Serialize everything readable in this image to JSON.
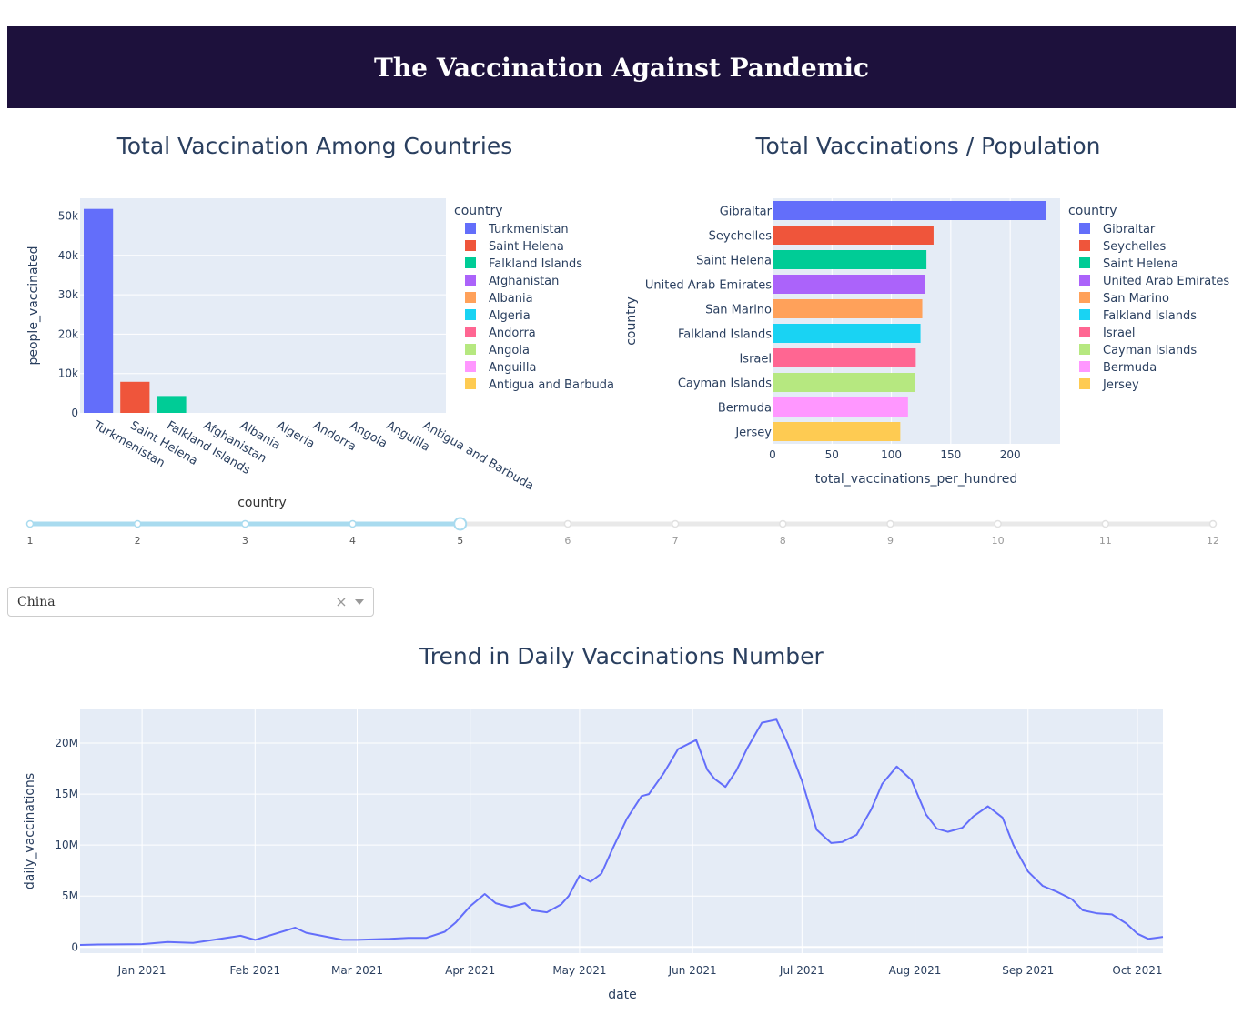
{
  "header": {
    "title": "The Vaccination Against Pandemic"
  },
  "colors": {
    "header_bg": "#1d113c",
    "plot_bg": "#e5ecf6",
    "palette": [
      "#636efa",
      "#ef553b",
      "#00cc96",
      "#ab63fa",
      "#ffa15a",
      "#19d3f3",
      "#ff6692",
      "#b6e880",
      "#ff97ff",
      "#fecb52"
    ],
    "slider_active": "#a9dbef"
  },
  "dropdown": {
    "value": "China",
    "clear": "×"
  },
  "slider": {
    "label": "country",
    "ticks": [
      "1",
      "2",
      "3",
      "4",
      "5",
      "6",
      "7",
      "8",
      "9",
      "10",
      "11",
      "12"
    ],
    "value": 5
  },
  "chart_data": [
    {
      "type": "bar",
      "title": "Total Vaccination Among Countries",
      "xlabel": "",
      "ylabel": "people_vaccinated",
      "legend_title": "country",
      "categories": [
        "Turkmenistan",
        "Saint Helena",
        "Falkland Islands",
        "Afghanistan",
        "Albania",
        "Algeria",
        "Andorra",
        "Angola",
        "Anguilla",
        "Antigua and Barbuda"
      ],
      "values": [
        51800,
        7900,
        4300,
        0,
        0,
        0,
        0,
        0,
        0,
        0
      ],
      "yticks": [
        0,
        10000,
        20000,
        30000,
        40000,
        50000
      ],
      "ytick_labels": [
        "0",
        "10k",
        "20k",
        "30k",
        "40k",
        "50k"
      ],
      "ylim": [
        0,
        54500
      ]
    },
    {
      "type": "bar",
      "orientation": "horizontal",
      "title": "Total Vaccinations / Population",
      "xlabel": "total_vaccinations_per_hundred",
      "ylabel": "country",
      "legend_title": "country",
      "categories": [
        "Gibraltar",
        "Seychelles",
        "Saint Helena",
        "United Arab Emirates",
        "San Marino",
        "Falkland Islands",
        "Israel",
        "Cayman Islands",
        "Bermuda",
        "Jersey"
      ],
      "values": [
        230.5,
        135.5,
        129.5,
        128.5,
        126,
        124.5,
        120.5,
        120,
        114,
        107.5
      ],
      "xticks": [
        0,
        50,
        100,
        150,
        200
      ],
      "xlim": [
        0,
        242
      ]
    },
    {
      "type": "line",
      "title": "Trend in Daily Vaccinations Number",
      "xlabel": "date",
      "ylabel": "daily_vaccinations",
      "xtick_labels": [
        "Jan 2021",
        "Feb 2021",
        "Mar 2021",
        "Apr 2021",
        "May 2021",
        "Jun 2021",
        "Jul 2021",
        "Aug 2021",
        "Sep 2021",
        "Oct 2021"
      ],
      "yticks": [
        0,
        5000000,
        10000000,
        15000000,
        20000000
      ],
      "ytick_labels": [
        "0",
        "5M",
        "10M",
        "15M",
        "20M"
      ],
      "ylim": [
        -600000,
        23300000
      ],
      "xlim": [
        "2020-12-15",
        "2021-10-08"
      ],
      "series": [
        {
          "x": [
            "2020-12-15",
            "2020-12-20",
            "2021-01-01",
            "2021-01-08",
            "2021-01-15",
            "2021-01-28",
            "2021-02-01",
            "2021-02-12",
            "2021-02-15",
            "2021-02-25",
            "2021-03-01",
            "2021-03-10",
            "2021-03-15",
            "2021-03-20",
            "2021-03-25",
            "2021-03-28",
            "2021-04-01",
            "2021-04-05",
            "2021-04-08",
            "2021-04-12",
            "2021-04-16",
            "2021-04-18",
            "2021-04-22",
            "2021-04-26",
            "2021-04-28",
            "2021-05-01",
            "2021-05-04",
            "2021-05-07",
            "2021-05-10",
            "2021-05-14",
            "2021-05-18",
            "2021-05-20",
            "2021-05-24",
            "2021-05-28",
            "2021-06-02",
            "2021-06-05",
            "2021-06-07",
            "2021-06-10",
            "2021-06-13",
            "2021-06-16",
            "2021-06-20",
            "2021-06-24",
            "2021-06-27",
            "2021-07-01",
            "2021-07-05",
            "2021-07-09",
            "2021-07-12",
            "2021-07-16",
            "2021-07-20",
            "2021-07-23",
            "2021-07-27",
            "2021-07-31",
            "2021-08-04",
            "2021-08-07",
            "2021-08-10",
            "2021-08-14",
            "2021-08-17",
            "2021-08-21",
            "2021-08-25",
            "2021-08-28",
            "2021-09-01",
            "2021-09-05",
            "2021-09-09",
            "2021-09-13",
            "2021-09-16",
            "2021-09-20",
            "2021-09-24",
            "2021-09-28",
            "2021-10-01",
            "2021-10-04",
            "2021-10-06",
            "2021-10-08"
          ],
          "y": [
            200000,
            250000,
            280000,
            500000,
            400000,
            1100000,
            700000,
            1900000,
            1400000,
            700000,
            700000,
            800000,
            900000,
            900000,
            1500000,
            2400000,
            4000000,
            5200000,
            4300000,
            3900000,
            4300000,
            3600000,
            3400000,
            4200000,
            5000000,
            7000000,
            6400000,
            7200000,
            9600000,
            12600000,
            14800000,
            15000000,
            17000000,
            19400000,
            20300000,
            17400000,
            16500000,
            15700000,
            17300000,
            19500000,
            22000000,
            22300000,
            20000000,
            16300000,
            11500000,
            10200000,
            10300000,
            11000000,
            13500000,
            16000000,
            17700000,
            16400000,
            13000000,
            11600000,
            11300000,
            11700000,
            12800000,
            13800000,
            12700000,
            10000000,
            7400000,
            6000000,
            5400000,
            4700000,
            3600000,
            3300000,
            3200000,
            2300000,
            1300000,
            800000,
            900000,
            1000000
          ]
        }
      ]
    }
  ]
}
